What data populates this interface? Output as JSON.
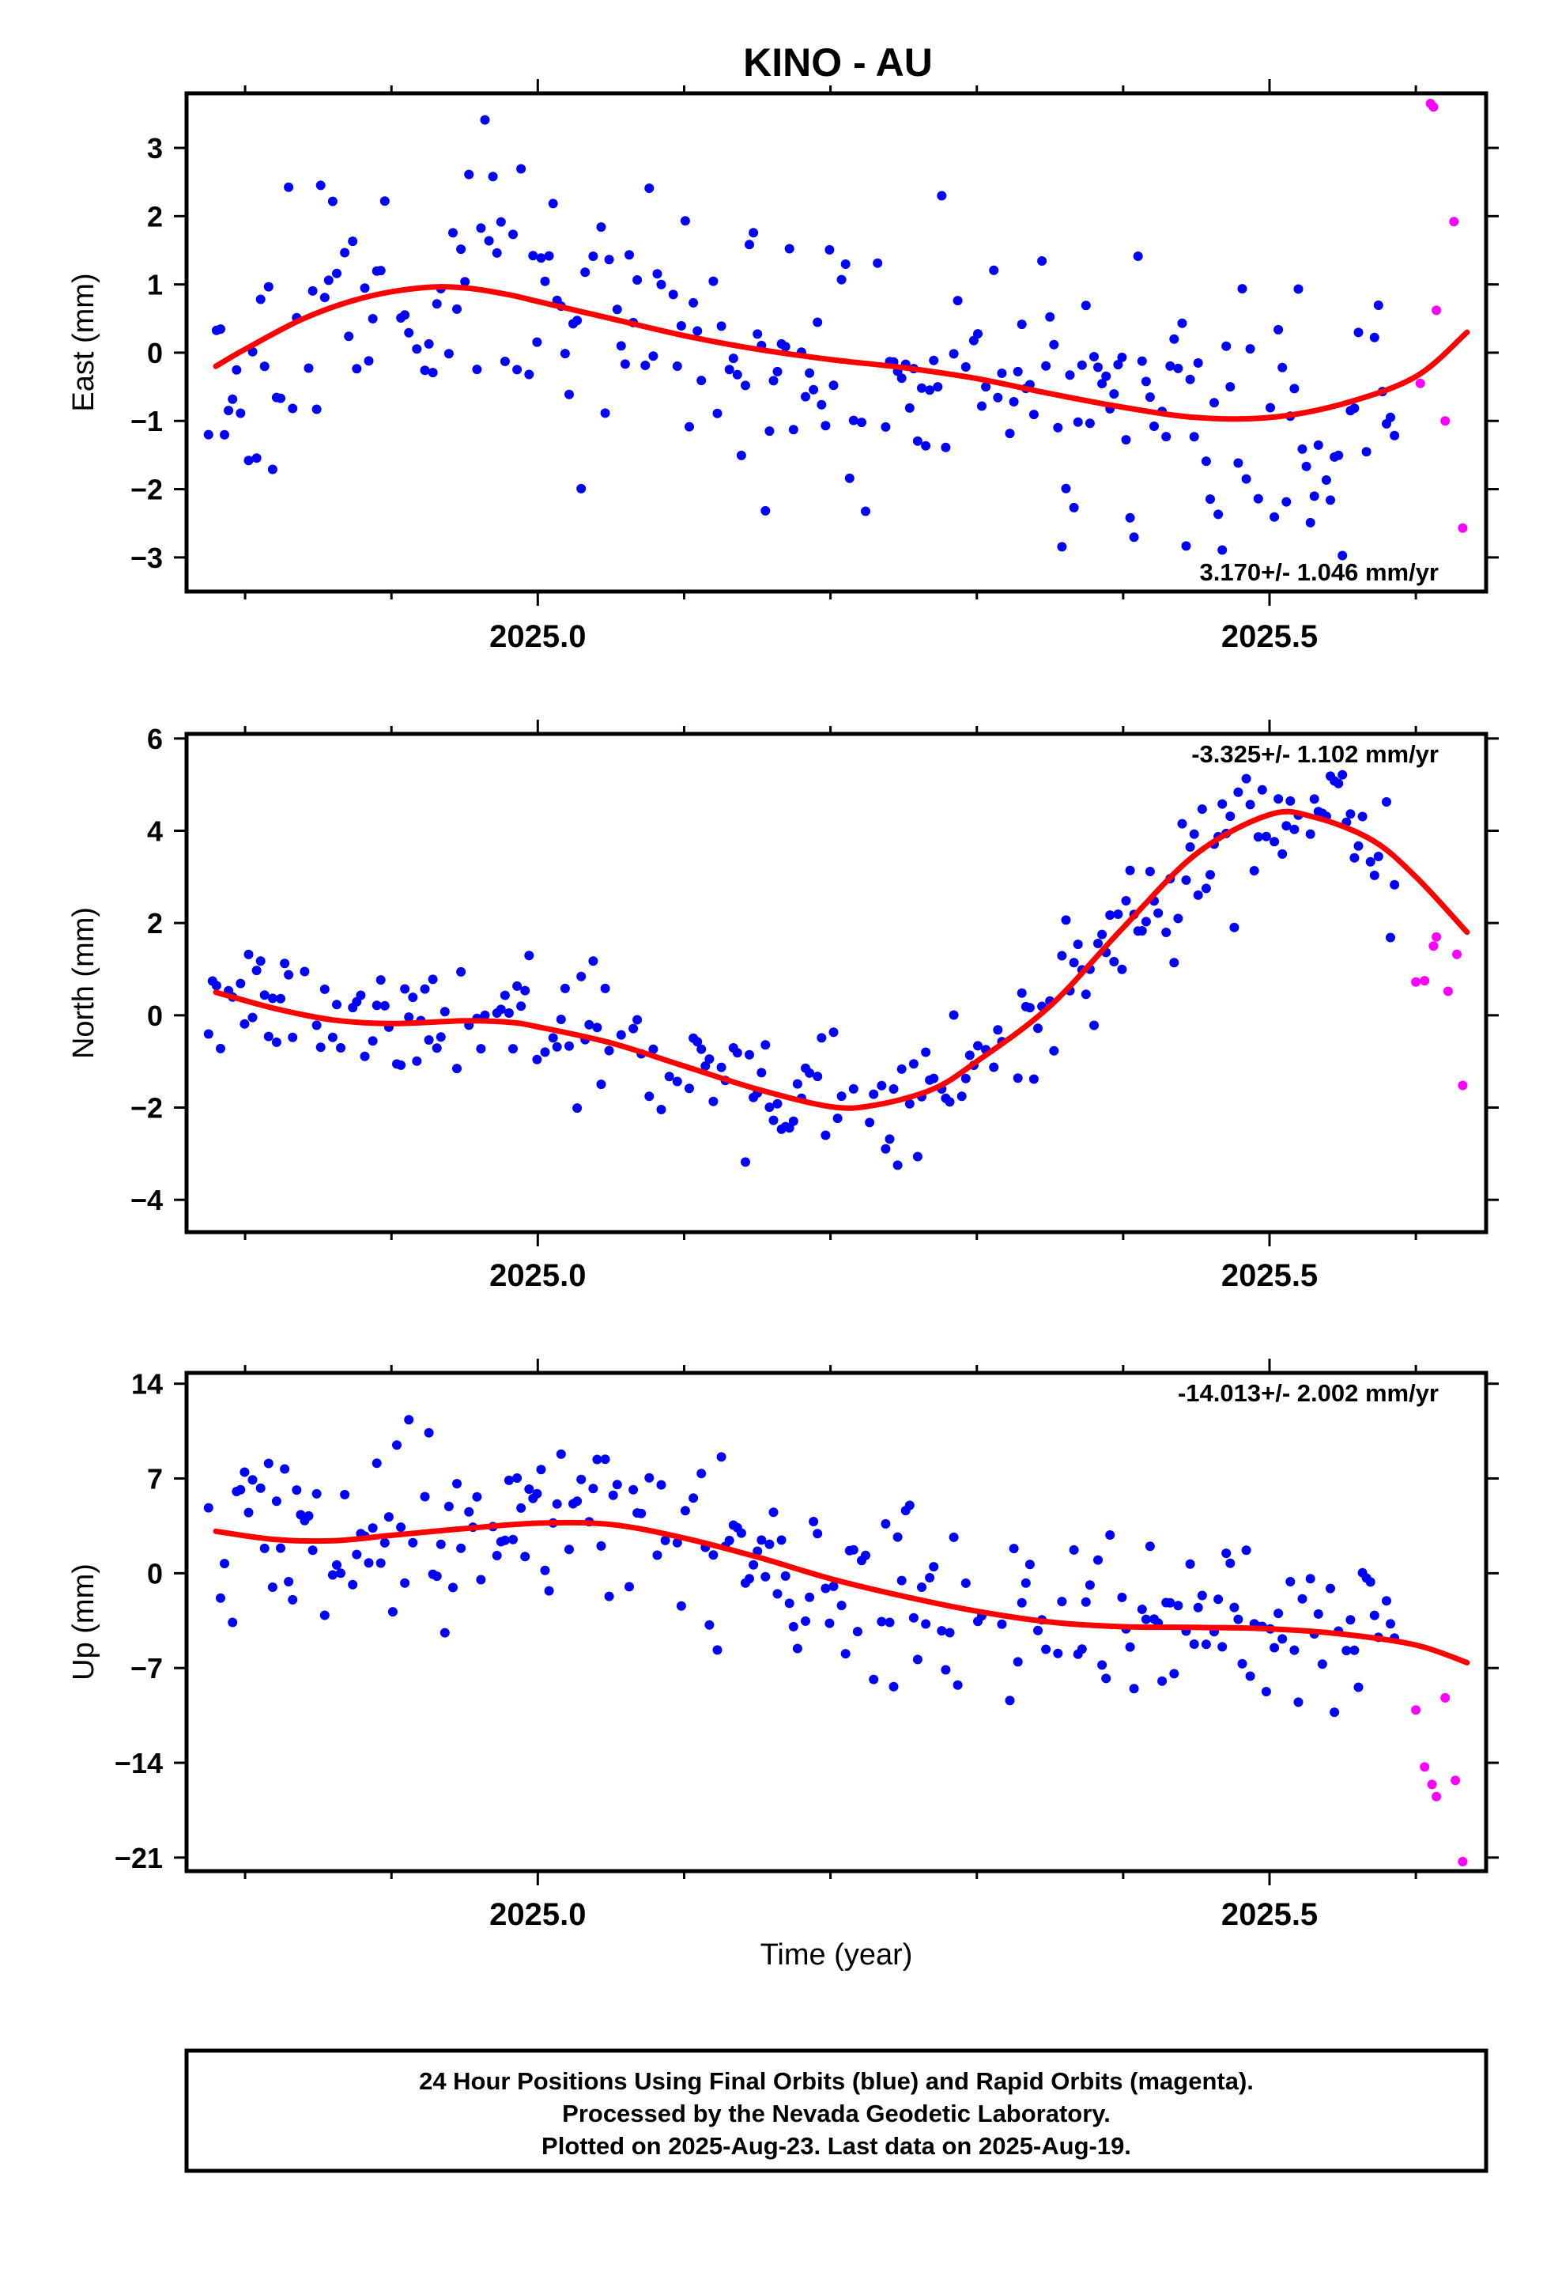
{
  "title": "KINO - AU",
  "xlabel": "Time (year)",
  "colors": {
    "final": "#0000ff",
    "rapid": "#ff00ff",
    "fit": "#ff0000",
    "frame": "#000000"
  },
  "footer": {
    "line1": "24 Hour Positions Using Final Orbits (blue) and Rapid Orbits (magenta).",
    "line2": "Processed by the Nevada Geodetic Laboratory.",
    "line3": "Plotted on 2025-Aug-23. Last data on 2025-Aug-19."
  },
  "chart_data": [
    {
      "type": "scatter",
      "name": "east",
      "ylabel": "East (mm)",
      "rate_label": "3.170+/- 1.046 mm/yr",
      "xlim": [
        2024.76,
        2025.648
      ],
      "ylim": [
        -3.5,
        3.8
      ],
      "xticks": [
        2025.0,
        2025.5
      ],
      "xminor": [
        2024.8,
        2024.9,
        2025.1,
        2025.2,
        2025.3,
        2025.4,
        2025.6
      ],
      "yticks": [
        -3,
        -2,
        -1,
        0,
        1,
        2,
        3
      ],
      "seed": 11,
      "noise": 1.05,
      "fit": [
        [
          2024.78,
          -0.2
        ],
        [
          2024.8,
          0.05
        ],
        [
          2024.84,
          0.5
        ],
        [
          2024.88,
          0.8
        ],
        [
          2024.92,
          0.95
        ],
        [
          2024.95,
          0.95
        ],
        [
          2024.98,
          0.85
        ],
        [
          2025.0,
          0.75
        ],
        [
          2025.05,
          0.5
        ],
        [
          2025.1,
          0.25
        ],
        [
          2025.15,
          0.05
        ],
        [
          2025.2,
          -0.1
        ],
        [
          2025.25,
          -0.22
        ],
        [
          2025.3,
          -0.38
        ],
        [
          2025.35,
          -0.6
        ],
        [
          2025.4,
          -0.8
        ],
        [
          2025.45,
          -0.95
        ],
        [
          2025.5,
          -0.95
        ],
        [
          2025.55,
          -0.75
        ],
        [
          2025.6,
          -0.35
        ],
        [
          2025.635,
          0.3
        ]
      ],
      "rapid": [
        [
          2025.61,
          3.65
        ],
        [
          2025.612,
          3.6
        ],
        [
          2025.614,
          0.62
        ],
        [
          2025.626,
          1.92
        ],
        [
          2025.62,
          -1.0
        ],
        [
          2025.603,
          -0.45
        ],
        [
          2025.632,
          -2.57
        ]
      ]
    },
    {
      "type": "scatter",
      "name": "north",
      "ylabel": "North (mm)",
      "rate_label": "-3.325+/- 1.102 mm/yr",
      "xlim": [
        2024.76,
        2025.648
      ],
      "ylim": [
        -4.7,
        6.1
      ],
      "xticks": [
        2025.0,
        2025.5
      ],
      "xminor": [
        2024.8,
        2024.9,
        2025.1,
        2025.2,
        2025.3,
        2025.4,
        2025.6
      ],
      "yticks": [
        -4,
        -2,
        0,
        2,
        4,
        6
      ],
      "seed": 23,
      "noise": 0.7,
      "fit": [
        [
          2024.78,
          0.5
        ],
        [
          2024.82,
          0.15
        ],
        [
          2024.86,
          -0.1
        ],
        [
          2024.9,
          -0.18
        ],
        [
          2024.95,
          -0.12
        ],
        [
          2024.98,
          -0.15
        ],
        [
          2025.0,
          -0.25
        ],
        [
          2025.05,
          -0.6
        ],
        [
          2025.1,
          -1.1
        ],
        [
          2025.15,
          -1.6
        ],
        [
          2025.2,
          -1.98
        ],
        [
          2025.23,
          -1.95
        ],
        [
          2025.27,
          -1.6
        ],
        [
          2025.3,
          -1.0
        ],
        [
          2025.35,
          0.2
        ],
        [
          2025.4,
          1.9
        ],
        [
          2025.45,
          3.5
        ],
        [
          2025.5,
          4.35
        ],
        [
          2025.53,
          4.3
        ],
        [
          2025.57,
          3.8
        ],
        [
          2025.6,
          3.0
        ],
        [
          2025.635,
          1.8
        ]
      ],
      "rapid": [
        [
          2025.6,
          0.72
        ],
        [
          2025.606,
          0.75
        ],
        [
          2025.612,
          1.5
        ],
        [
          2025.614,
          1.7
        ],
        [
          2025.622,
          0.52
        ],
        [
          2025.628,
          1.32
        ],
        [
          2025.632,
          -1.52
        ]
      ]
    },
    {
      "type": "scatter",
      "name": "up",
      "ylabel": "Up (mm)",
      "rate_label": "-14.013+/- 2.002 mm/yr",
      "xlim": [
        2024.76,
        2025.648
      ],
      "ylim": [
        -22.0,
        14.8
      ],
      "xticks": [
        2025.0,
        2025.5
      ],
      "xminor": [
        2024.8,
        2024.9,
        2025.1,
        2025.2,
        2025.3,
        2025.4,
        2025.6
      ],
      "yticks": [
        -21,
        -14,
        -7,
        0,
        7,
        14
      ],
      "ytick_labels": [
        "−21",
        "−14",
        "−7",
        "0",
        "7",
        "14"
      ],
      "seed": 37,
      "noise": 3.2,
      "fit": [
        [
          2024.78,
          3.1
        ],
        [
          2024.82,
          2.5
        ],
        [
          2024.86,
          2.4
        ],
        [
          2024.9,
          2.8
        ],
        [
          2024.95,
          3.3
        ],
        [
          2025.0,
          3.7
        ],
        [
          2025.05,
          3.6
        ],
        [
          2025.1,
          2.6
        ],
        [
          2025.15,
          1.2
        ],
        [
          2025.2,
          -0.4
        ],
        [
          2025.25,
          -1.7
        ],
        [
          2025.3,
          -2.8
        ],
        [
          2025.35,
          -3.6
        ],
        [
          2025.4,
          -3.95
        ],
        [
          2025.45,
          -4.0
        ],
        [
          2025.5,
          -4.1
        ],
        [
          2025.55,
          -4.5
        ],
        [
          2025.6,
          -5.3
        ],
        [
          2025.635,
          -6.6
        ]
      ],
      "rapid": [
        [
          2025.6,
          -10.1
        ],
        [
          2025.606,
          -14.3
        ],
        [
          2025.611,
          -15.6
        ],
        [
          2025.614,
          -16.5
        ],
        [
          2025.62,
          -9.2
        ],
        [
          2025.627,
          -15.3
        ],
        [
          2025.632,
          -21.3
        ]
      ]
    }
  ]
}
